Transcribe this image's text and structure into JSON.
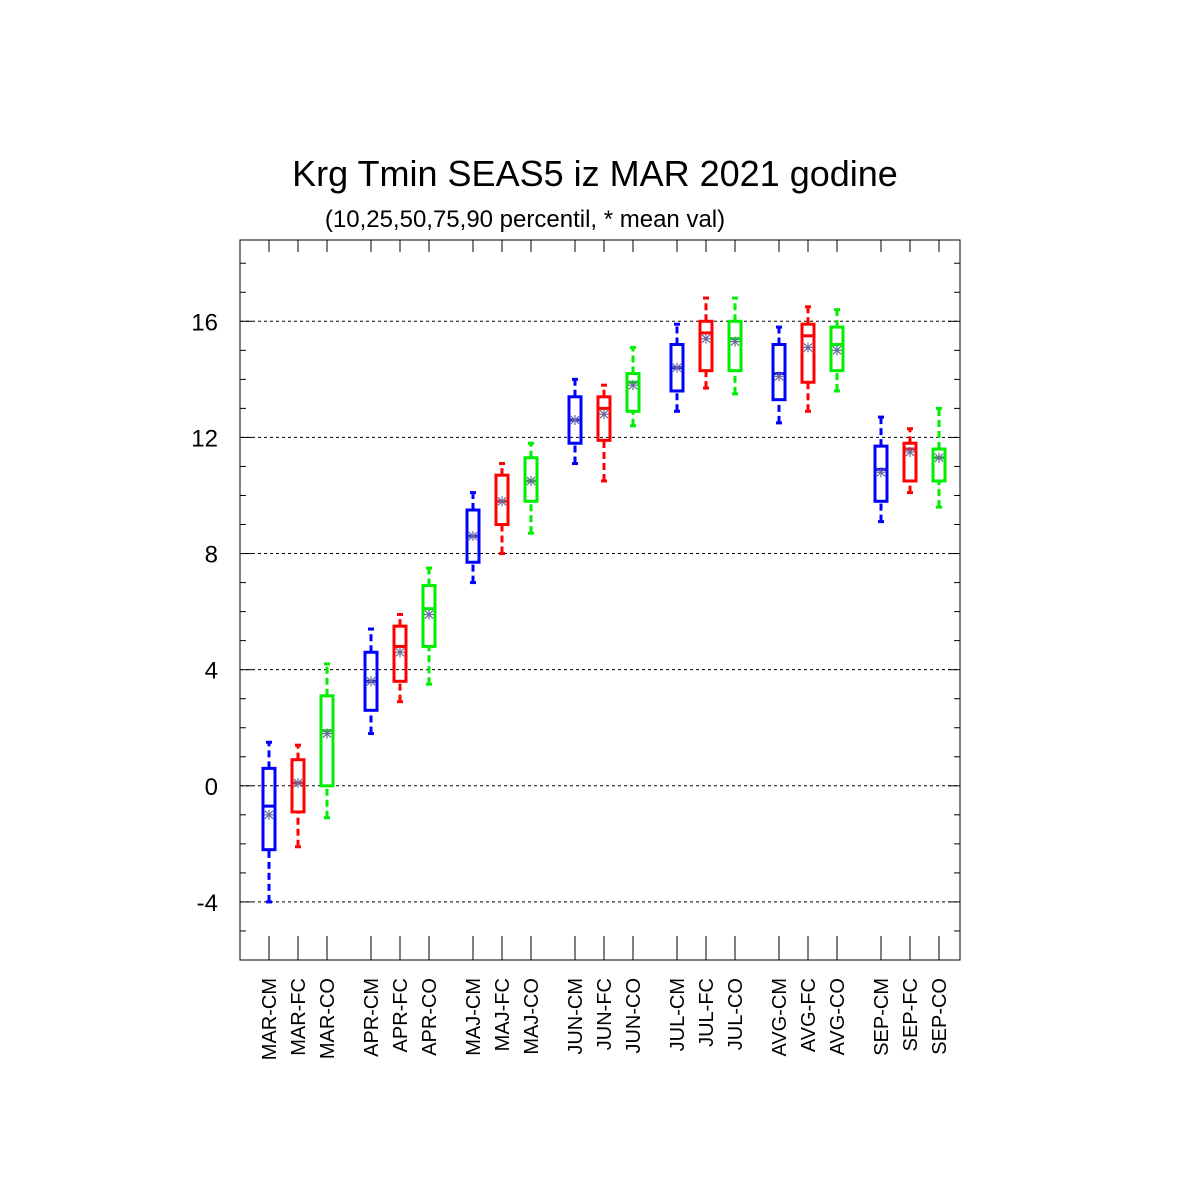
{
  "chart_data": {
    "type": "box",
    "title": "Krg Tmin SEAS5 iz MAR 2021 godine",
    "subtitle": "(10,25,50,75,90 percentil, * mean val)",
    "xlabel": "",
    "ylabel": "",
    "ylim": [
      -6,
      18.8
    ],
    "yticks": [
      -4,
      0,
      4,
      8,
      12,
      16
    ],
    "grid": "horizontal dashed at major ticks",
    "colors": {
      "CM": "#0000ff",
      "FC": "#ff0000",
      "CO": "#00ee00",
      "mean_marker": "#6a6a9a"
    },
    "categories": [
      "MAR-CM",
      "MAR-FC",
      "MAR-CO",
      "APR-CM",
      "APR-FC",
      "APR-CO",
      "MAJ-CM",
      "MAJ-FC",
      "MAJ-CO",
      "JUN-CM",
      "JUN-FC",
      "JUN-CO",
      "JUL-CM",
      "JUL-FC",
      "JUL-CO",
      "AVG-CM",
      "AVG-FC",
      "AVG-CO",
      "SEP-CM",
      "SEP-FC",
      "SEP-CO"
    ],
    "boxes": [
      {
        "label": "MAR-CM",
        "series": "CM",
        "p10": -4.0,
        "p25": -2.2,
        "p50": -0.7,
        "p75": 0.6,
        "p90": 1.5,
        "mean": -1.0
      },
      {
        "label": "MAR-FC",
        "series": "FC",
        "p10": -2.1,
        "p25": -0.9,
        "p50": 0.1,
        "p75": 0.9,
        "p90": 1.4,
        "mean": 0.1
      },
      {
        "label": "MAR-CO",
        "series": "CO",
        "p10": -1.1,
        "p25": 0.0,
        "p50": 1.9,
        "p75": 3.1,
        "p90": 4.2,
        "mean": 1.8
      },
      {
        "label": "APR-CM",
        "series": "CM",
        "p10": 1.8,
        "p25": 2.6,
        "p50": 3.6,
        "p75": 4.6,
        "p90": 5.4,
        "mean": 3.6
      },
      {
        "label": "APR-FC",
        "series": "FC",
        "p10": 2.9,
        "p25": 3.6,
        "p50": 4.8,
        "p75": 5.5,
        "p90": 5.9,
        "mean": 4.6
      },
      {
        "label": "APR-CO",
        "series": "CO",
        "p10": 3.5,
        "p25": 4.8,
        "p50": 6.1,
        "p75": 6.9,
        "p90": 7.5,
        "mean": 5.9
      },
      {
        "label": "MAJ-CM",
        "series": "CM",
        "p10": 7.0,
        "p25": 7.7,
        "p50": 8.6,
        "p75": 9.5,
        "p90": 10.1,
        "mean": 8.6
      },
      {
        "label": "MAJ-FC",
        "series": "FC",
        "p10": 8.0,
        "p25": 9.0,
        "p50": 9.8,
        "p75": 10.7,
        "p90": 11.1,
        "mean": 9.8
      },
      {
        "label": "MAJ-CO",
        "series": "CO",
        "p10": 8.7,
        "p25": 9.8,
        "p50": 10.5,
        "p75": 11.3,
        "p90": 11.8,
        "mean": 10.5
      },
      {
        "label": "JUN-CM",
        "series": "CM",
        "p10": 11.1,
        "p25": 11.8,
        "p50": 12.6,
        "p75": 13.4,
        "p90": 14.0,
        "mean": 12.6
      },
      {
        "label": "JUN-FC",
        "series": "FC",
        "p10": 10.5,
        "p25": 11.9,
        "p50": 13.0,
        "p75": 13.4,
        "p90": 13.8,
        "mean": 12.8
      },
      {
        "label": "JUN-CO",
        "series": "CO",
        "p10": 12.4,
        "p25": 12.9,
        "p50": 13.9,
        "p75": 14.2,
        "p90": 15.1,
        "mean": 13.8
      },
      {
        "label": "JUL-CM",
        "series": "CM",
        "p10": 12.9,
        "p25": 13.6,
        "p50": 14.4,
        "p75": 15.2,
        "p90": 15.9,
        "mean": 14.4
      },
      {
        "label": "JUL-FC",
        "series": "FC",
        "p10": 13.7,
        "p25": 14.3,
        "p50": 15.6,
        "p75": 16.0,
        "p90": 16.8,
        "mean": 15.4
      },
      {
        "label": "JUL-CO",
        "series": "CO",
        "p10": 13.5,
        "p25": 14.3,
        "p50": 15.4,
        "p75": 16.0,
        "p90": 16.8,
        "mean": 15.3
      },
      {
        "label": "AVG-CM",
        "series": "CM",
        "p10": 12.5,
        "p25": 13.3,
        "p50": 14.2,
        "p75": 15.2,
        "p90": 15.8,
        "mean": 14.1
      },
      {
        "label": "AVG-FC",
        "series": "FC",
        "p10": 12.9,
        "p25": 13.9,
        "p50": 15.5,
        "p75": 15.9,
        "p90": 16.5,
        "mean": 15.1
      },
      {
        "label": "AVG-CO",
        "series": "CO",
        "p10": 13.6,
        "p25": 14.3,
        "p50": 15.2,
        "p75": 15.8,
        "p90": 16.4,
        "mean": 15.0
      },
      {
        "label": "SEP-CM",
        "series": "CM",
        "p10": 9.1,
        "p25": 9.8,
        "p50": 10.9,
        "p75": 11.7,
        "p90": 12.7,
        "mean": 10.8
      },
      {
        "label": "SEP-FC",
        "series": "FC",
        "p10": 10.1,
        "p25": 10.5,
        "p50": 11.6,
        "p75": 11.8,
        "p90": 12.3,
        "mean": 11.5
      },
      {
        "label": "SEP-CO",
        "series": "CO",
        "p10": 9.6,
        "p25": 10.5,
        "p50": 11.3,
        "p75": 11.6,
        "p90": 13.0,
        "mean": 11.3
      }
    ]
  }
}
